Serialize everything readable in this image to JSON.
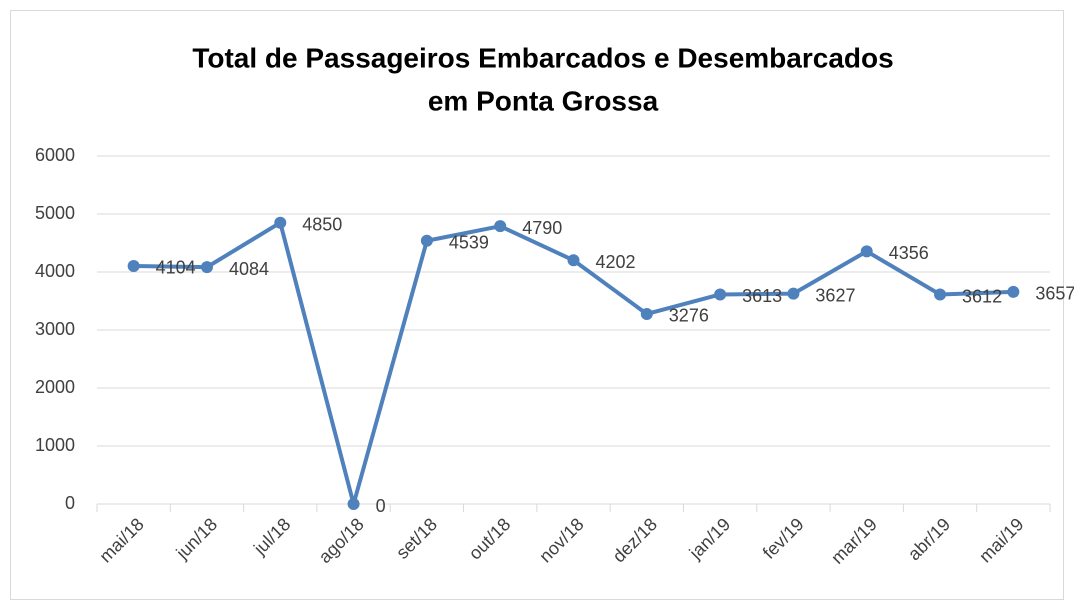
{
  "chart_data": {
    "type": "line",
    "title": [
      "Total de Passageiros Embarcados e Desembarcados",
      "em Ponta Grossa"
    ],
    "categories": [
      "mai/18",
      "jun/18",
      "jul/18",
      "ago/18",
      "set/18",
      "out/18",
      "nov/18",
      "dez/18",
      "jan/19",
      "fev/19",
      "mar/19",
      "abr/19",
      "mai/19"
    ],
    "values": [
      4104,
      4084,
      4850,
      0,
      4539,
      4790,
      4202,
      3276,
      3613,
      3627,
      4356,
      3612,
      3657
    ],
    "color": "#4f81bd",
    "ylim": [
      0,
      6000
    ],
    "yticks": [
      0,
      1000,
      2000,
      3000,
      4000,
      5000,
      6000
    ],
    "grid": true
  }
}
